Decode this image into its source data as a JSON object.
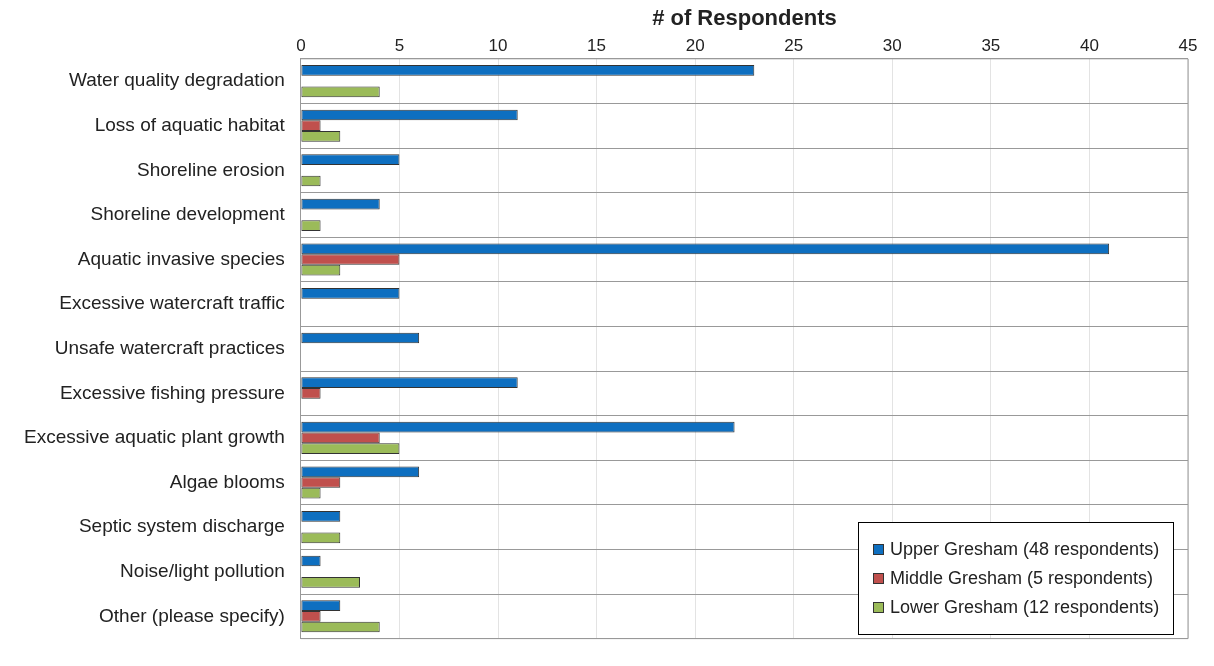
{
  "chart_data": {
    "type": "bar",
    "orientation": "horizontal",
    "xlabel": "# of Respondents",
    "categories": [
      "Water quality degradation",
      "Loss of aquatic habitat",
      "Shoreline erosion",
      "Shoreline development",
      "Aquatic invasive species",
      "Excessive watercraft traffic",
      "Unsafe watercraft practices",
      "Excessive fishing pressure",
      "Excessive aquatic plant growth",
      "Algae blooms",
      "Septic system discharge",
      "Noise/light pollution",
      "Other (please specify)"
    ],
    "series": [
      {
        "name": "Upper Gresham (48 respondents)",
        "color": "#0e6fc0",
        "values": [
          23,
          11,
          5,
          4,
          41,
          5,
          6,
          11,
          22,
          6,
          2,
          1,
          2
        ]
      },
      {
        "name": "Middle Gresham (5 respondents)",
        "color": "#c0504d",
        "values": [
          0,
          1,
          0,
          0,
          5,
          0,
          0,
          1,
          4,
          2,
          0,
          0,
          1
        ]
      },
      {
        "name": "Lower Gresham (12 respondents)",
        "color": "#9bbb59",
        "values": [
          4,
          2,
          1,
          1,
          2,
          0,
          0,
          0,
          5,
          1,
          2,
          3,
          4
        ]
      }
    ],
    "xlim": [
      0,
      45
    ],
    "xticks": [
      0,
      5,
      10,
      15,
      20,
      25,
      30,
      35,
      40,
      45
    ],
    "grid": true,
    "legend": "bottom right"
  }
}
